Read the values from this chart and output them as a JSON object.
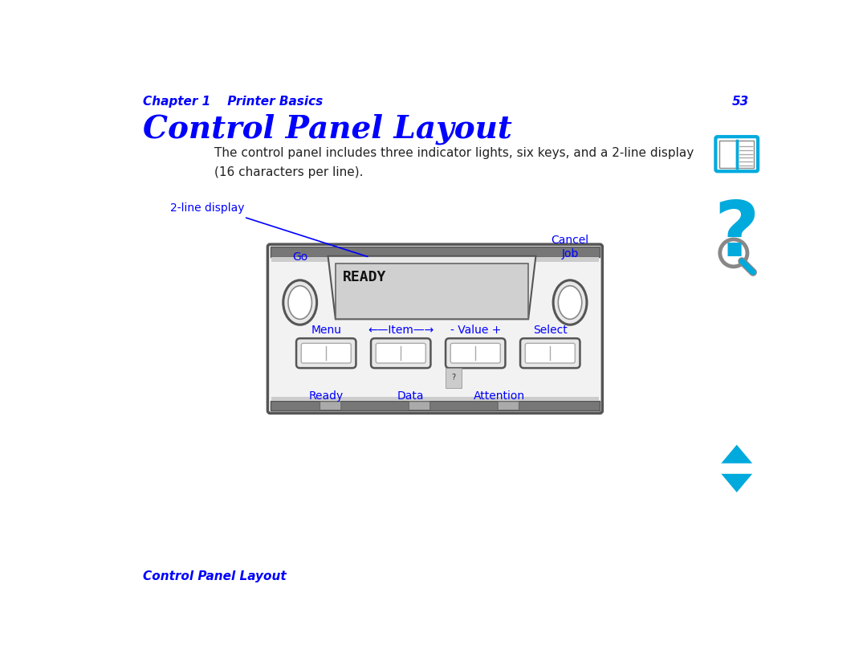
{
  "bg_color": "#ffffff",
  "header_chapter": "Chapter 1    Printer Basics",
  "header_page": "53",
  "title": "Control Panel Layout",
  "body_text": "The control panel includes three indicator lights, six keys, and a 2-line display\n(16 characters per line).",
  "label_2line": "2-line display",
  "label_go": "Go",
  "label_cancel": "Cancel\nJob",
  "label_menu": "Menu",
  "label_item": "←—Item—→",
  "label_value": "- Value +",
  "label_select": "Select",
  "label_ready": "Ready",
  "label_data": "Data",
  "label_attention": "Attention",
  "display_text": "READY",
  "footer_text": "Control Panel Layout",
  "blue_color": "#0000ff",
  "cyan_color": "#00aadd",
  "panel_outer_color": "#666666",
  "panel_bg": "#f0f0f0",
  "display_bg": "#d0d0d0",
  "bar_color": "#888888",
  "bar_inner_color": "#bbbbbb",
  "led_color": "#aaaaaa"
}
